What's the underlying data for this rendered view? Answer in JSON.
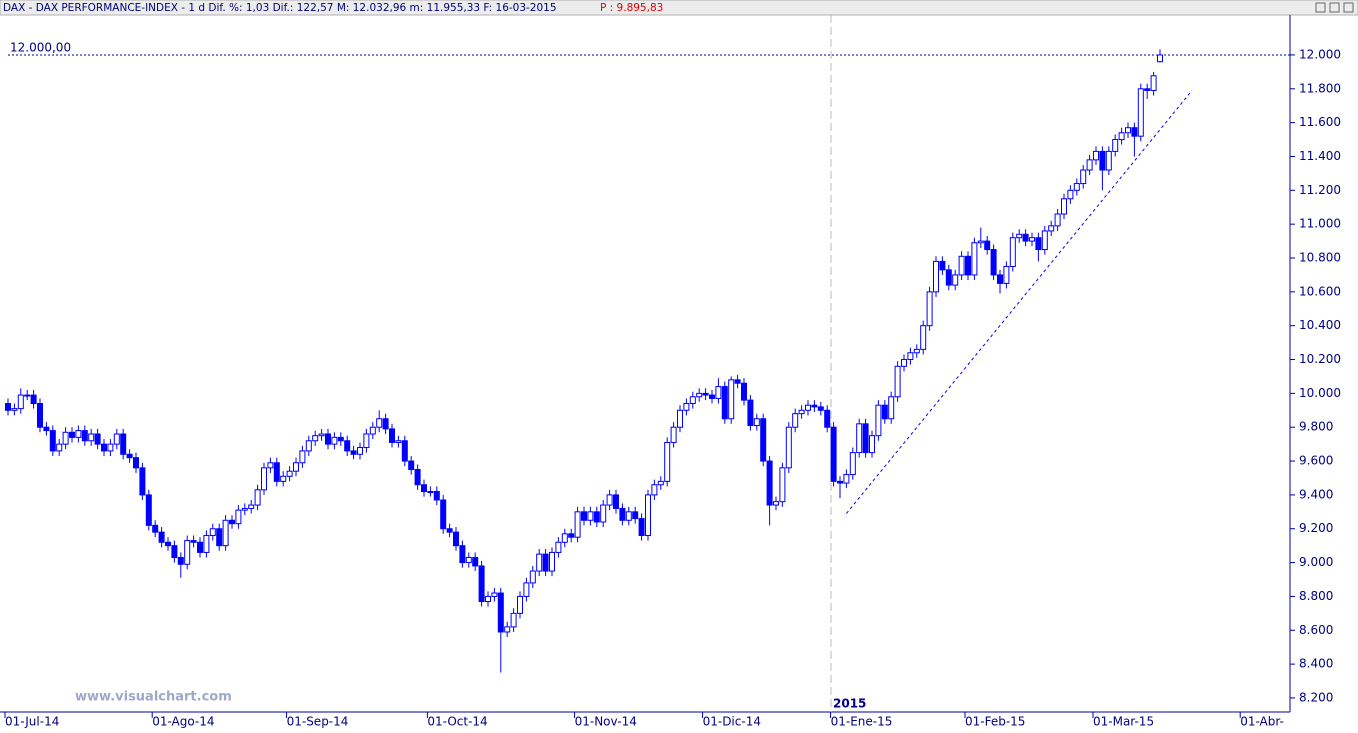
{
  "header": {
    "title": "DAX - DAX PERFORMANCE-INDEX -  1 d Dif. %: 1,03 Dif.: 122,57 M: 12.032,96 m: 11.955,33 F: 16-03-2015",
    "price": "P : 9.895,83"
  },
  "watermark": "www.visualchart.com",
  "chart_data": {
    "type": "candlestick",
    "up_color": "#ffffff",
    "down_color": "#0000ff",
    "edge_color": "#0000ff",
    "year_label": "2015",
    "reference_line": {
      "value": 12000,
      "label": "12.000,00"
    },
    "trendline": {
      "start": 9290,
      "end": 11790
    },
    "ylim": [
      8117,
      12242
    ],
    "yticks": [
      {
        "value": 8200,
        "label": "8.200"
      },
      {
        "value": 8400,
        "label": "8.400"
      },
      {
        "value": 8600,
        "label": "8.600"
      },
      {
        "value": 8800,
        "label": "8.800"
      },
      {
        "value": 9000,
        "label": "9.000"
      },
      {
        "value": 9200,
        "label": "9.200"
      },
      {
        "value": 9400,
        "label": "9.400"
      },
      {
        "value": 9600,
        "label": "9.600"
      },
      {
        "value": 9800,
        "label": "9.800"
      },
      {
        "value": 10000,
        "label": "10.000"
      },
      {
        "value": 10200,
        "label": "10.200"
      },
      {
        "value": 10400,
        "label": "10.400"
      },
      {
        "value": 10600,
        "label": "10.600"
      },
      {
        "value": 10800,
        "label": "10.800"
      },
      {
        "value": 11000,
        "label": "11.000"
      },
      {
        "value": 11200,
        "label": "11.200"
      },
      {
        "value": 11400,
        "label": "11.400"
      },
      {
        "value": 11600,
        "label": "11.600"
      },
      {
        "value": 11800,
        "label": "11.800"
      },
      {
        "value": 12000,
        "label": "12.000"
      }
    ],
    "categories": [
      "01-Jul-14",
      null,
      null,
      null,
      null,
      null,
      null,
      null,
      null,
      null,
      null,
      null,
      null,
      null,
      null,
      null,
      null,
      null,
      null,
      null,
      null,
      null,
      null,
      "01-Ago-14",
      null,
      null,
      null,
      null,
      null,
      null,
      null,
      null,
      null,
      null,
      null,
      null,
      null,
      null,
      null,
      null,
      null,
      null,
      null,
      null,
      "01-Sep-14",
      null,
      null,
      null,
      null,
      null,
      null,
      null,
      null,
      null,
      null,
      null,
      null,
      null,
      null,
      null,
      null,
      null,
      null,
      null,
      null,
      null,
      "01-Oct-14",
      null,
      null,
      null,
      null,
      null,
      null,
      null,
      null,
      null,
      null,
      null,
      null,
      null,
      null,
      null,
      null,
      null,
      null,
      null,
      null,
      null,
      null,
      "01-Nov-14",
      null,
      null,
      null,
      null,
      null,
      null,
      null,
      null,
      null,
      null,
      null,
      null,
      null,
      null,
      null,
      null,
      null,
      null,
      null,
      "01-Dic-14",
      null,
      null,
      null,
      null,
      null,
      null,
      null,
      null,
      null,
      null,
      null,
      null,
      null,
      null,
      null,
      null,
      null,
      null,
      null,
      "01-Ene-15",
      null,
      null,
      null,
      null,
      null,
      null,
      null,
      null,
      null,
      null,
      null,
      null,
      null,
      null,
      null,
      null,
      null,
      null,
      null,
      null,
      "01-Feb-15",
      null,
      null,
      null,
      null,
      null,
      null,
      null,
      null,
      null,
      null,
      null,
      null,
      null,
      null,
      null,
      null,
      null,
      null,
      null,
      "01-Mar-15",
      null,
      null,
      null,
      null,
      null,
      null,
      null,
      null,
      null,
      null,
      null,
      null,
      null,
      null,
      null,
      null,
      null,
      null,
      null,
      null,
      null,
      null,
      "01-Abr-"
    ],
    "open": [
      9940,
      9900,
      9910,
      9990,
      9990,
      9940,
      9800,
      9780,
      9660,
      9700,
      9770,
      9740,
      9780,
      9720,
      9760,
      9700,
      9660,
      9700,
      9760,
      9640,
      9620,
      9560,
      9400,
      9220,
      9180,
      9120,
      9100,
      9030,
      8990,
      9130,
      9120,
      9060,
      9160,
      9200,
      9100,
      9250,
      9230,
      9310,
      9320,
      9340,
      9430,
      9560,
      9590,
      9480,
      9510,
      9540,
      9590,
      9660,
      9720,
      9750,
      9760,
      9700,
      9740,
      9720,
      9660,
      9640,
      9680,
      9760,
      9800,
      9850,
      9790,
      9710,
      9720,
      9600,
      9550,
      9460,
      9420,
      9420,
      9370,
      9200,
      9180,
      9100,
      9000,
      9030,
      8980,
      8770,
      8800,
      8820,
      8590,
      8620,
      8700,
      8800,
      8880,
      8950,
      9050,
      8950,
      9060,
      9120,
      9170,
      9150,
      9300,
      9250,
      9300,
      9240,
      9340,
      9400,
      9320,
      9250,
      9300,
      9260,
      9160,
      9400,
      9460,
      9480,
      9710,
      9800,
      9900,
      9940,
      9980,
      10000,
      9990,
      9970,
      10040,
      9850,
      10080,
      10060,
      9960,
      9810,
      9850,
      9600,
      9340,
      9360,
      9560,
      9800,
      9880,
      9900,
      9930,
      9920,
      9900,
      9800,
      9480,
      9470,
      9520,
      9650,
      9820,
      9650,
      9750,
      9930,
      9850,
      9980,
      10160,
      10200,
      10240,
      10260,
      10400,
      10600,
      10780,
      10730,
      10640,
      10700,
      10810,
      10700,
      10890,
      10900,
      10850,
      10700,
      10650,
      10750,
      10920,
      10940,
      10900,
      10920,
      10850,
      10960,
      10990,
      11060,
      11150,
      11200,
      11240,
      11320,
      11380,
      11430,
      11320,
      11430,
      11500,
      11540,
      11570,
      11520,
      11800,
      11790,
      11960,
      null,
      null,
      null,
      null,
      null,
      null,
      null,
      null,
      null,
      null,
      null,
      null,
      null
    ],
    "high": [
      9970,
      9940,
      10030,
      10020,
      10020,
      9970,
      9830,
      9810,
      9730,
      9800,
      9800,
      9810,
      9810,
      9790,
      9790,
      9730,
      9730,
      9790,
      9790,
      9670,
      9650,
      9590,
      9430,
      9250,
      9210,
      9150,
      9130,
      9060,
      9160,
      9160,
      9150,
      9190,
      9230,
      9230,
      9280,
      9280,
      9340,
      9350,
      9370,
      9460,
      9590,
      9620,
      9620,
      9540,
      9570,
      9620,
      9690,
      9750,
      9780,
      9790,
      9790,
      9770,
      9770,
      9750,
      9690,
      9710,
      9790,
      9830,
      9900,
      9880,
      9820,
      9750,
      9750,
      9630,
      9580,
      9490,
      9450,
      9450,
      9400,
      9230,
      9210,
      9130,
      9060,
      9060,
      9010,
      8830,
      8850,
      8850,
      8650,
      8730,
      8830,
      8910,
      8980,
      9080,
      9080,
      9090,
      9150,
      9200,
      9200,
      9330,
      9330,
      9330,
      9330,
      9370,
      9430,
      9430,
      9350,
      9330,
      9330,
      9290,
      9430,
      9490,
      9510,
      9740,
      9830,
      9930,
      9970,
      10010,
      10030,
      10030,
      10020,
      10090,
      10070,
      10100,
      10110,
      10090,
      9990,
      9880,
      9880,
      9630,
      9390,
      9590,
      9830,
      9910,
      9930,
      9960,
      9960,
      9950,
      9930,
      9830,
      9510,
      9550,
      9680,
      9850,
      9850,
      9780,
      9960,
      9960,
      10010,
      10190,
      10230,
      10270,
      10290,
      10430,
      10630,
      10810,
      10810,
      10760,
      10730,
      10840,
      10840,
      10920,
      10980,
      10930,
      10880,
      10730,
      10780,
      10950,
      10970,
      10970,
      10950,
      10950,
      10990,
      11020,
      11090,
      11180,
      11230,
      11270,
      11350,
      11410,
      11460,
      11460,
      11460,
      11530,
      11570,
      11600,
      11600,
      11830,
      11830,
      11900,
      12033,
      null,
      null,
      null,
      null,
      null,
      null,
      null,
      null,
      null,
      null,
      null,
      null,
      null
    ],
    "low": [
      9870,
      9870,
      9880,
      9960,
      9910,
      9770,
      9750,
      9630,
      9630,
      9670,
      9710,
      9710,
      9690,
      9690,
      9670,
      9630,
      9630,
      9670,
      9610,
      9590,
      9530,
      9370,
      9190,
      9150,
      9090,
      9070,
      9000,
      8910,
      8960,
      9090,
      9030,
      9030,
      9130,
      9070,
      9070,
      9200,
      9200,
      9280,
      9290,
      9310,
      9400,
      9530,
      9450,
      9450,
      9480,
      9510,
      9560,
      9630,
      9690,
      9720,
      9670,
      9670,
      9690,
      9630,
      9610,
      9610,
      9650,
      9730,
      9770,
      9760,
      9680,
      9680,
      9570,
      9520,
      9430,
      9390,
      9390,
      9340,
      9170,
      9150,
      9070,
      8970,
      8970,
      8950,
      8740,
      8740,
      8770,
      8350,
      8560,
      8590,
      8670,
      8770,
      8850,
      8920,
      8920,
      8920,
      9030,
      9090,
      9120,
      9120,
      9220,
      9220,
      9210,
      9210,
      9310,
      9290,
      9220,
      9220,
      9230,
      9130,
      9130,
      9370,
      9430,
      9450,
      9680,
      9770,
      9870,
      9910,
      9950,
      9960,
      9940,
      9940,
      9820,
      9820,
      10030,
      9930,
      9780,
      9780,
      9570,
      9220,
      9310,
      9330,
      9530,
      9770,
      9850,
      9870,
      9890,
      9870,
      9770,
      9450,
      9380,
      9440,
      9490,
      9620,
      9620,
      9620,
      9720,
      9820,
      9820,
      9950,
      10130,
      10170,
      10210,
      10230,
      10370,
      10570,
      10700,
      10610,
      10610,
      10670,
      10670,
      10670,
      10860,
      10820,
      10670,
      10590,
      10620,
      10720,
      10890,
      10870,
      10870,
      10780,
      10820,
      10930,
      10960,
      11030,
      11120,
      11170,
      11210,
      11290,
      11350,
      11200,
      11290,
      11400,
      11470,
      11510,
      11400,
      11490,
      11740,
      11760,
      11955,
      null,
      null,
      null,
      null,
      null,
      null,
      null,
      null,
      null,
      null,
      null,
      null,
      null
    ],
    "close": [
      9900,
      9910,
      9990,
      9990,
      9940,
      9800,
      9780,
      9660,
      9700,
      9770,
      9740,
      9780,
      9720,
      9760,
      9700,
      9660,
      9700,
      9760,
      9640,
      9620,
      9560,
      9400,
      9220,
      9180,
      9120,
      9100,
      9030,
      8990,
      9130,
      9120,
      9060,
      9160,
      9200,
      9100,
      9250,
      9230,
      9310,
      9320,
      9340,
      9430,
      9560,
      9590,
      9480,
      9510,
      9540,
      9590,
      9660,
      9720,
      9750,
      9760,
      9700,
      9740,
      9720,
      9660,
      9640,
      9680,
      9760,
      9800,
      9850,
      9790,
      9710,
      9720,
      9600,
      9550,
      9460,
      9420,
      9420,
      9370,
      9200,
      9180,
      9100,
      9000,
      9030,
      8980,
      8770,
      8800,
      8820,
      8590,
      8620,
      8700,
      8800,
      8880,
      8950,
      9050,
      8950,
      9060,
      9120,
      9170,
      9150,
      9300,
      9250,
      9300,
      9240,
      9340,
      9400,
      9320,
      9250,
      9300,
      9260,
      9160,
      9400,
      9460,
      9480,
      9710,
      9800,
      9900,
      9940,
      9980,
      10000,
      9990,
      9970,
      10040,
      9850,
      10080,
      10060,
      9960,
      9810,
      9850,
      9600,
      9340,
      9360,
      9560,
      9800,
      9880,
      9900,
      9930,
      9920,
      9900,
      9800,
      9480,
      9470,
      9520,
      9650,
      9820,
      9650,
      9750,
      9930,
      9850,
      9980,
      10160,
      10200,
      10240,
      10260,
      10400,
      10600,
      10780,
      10730,
      10640,
      10700,
      10810,
      10700,
      10890,
      10900,
      10850,
      10700,
      10650,
      10750,
      10920,
      10940,
      10900,
      10920,
      10850,
      10960,
      10990,
      11060,
      11150,
      11200,
      11240,
      11320,
      11380,
      11430,
      11320,
      11430,
      11500,
      11540,
      11570,
      11520,
      11800,
      11790,
      11877,
      12000,
      null,
      null,
      null,
      null,
      null,
      null,
      null,
      null,
      null,
      null,
      null,
      null,
      null
    ]
  }
}
